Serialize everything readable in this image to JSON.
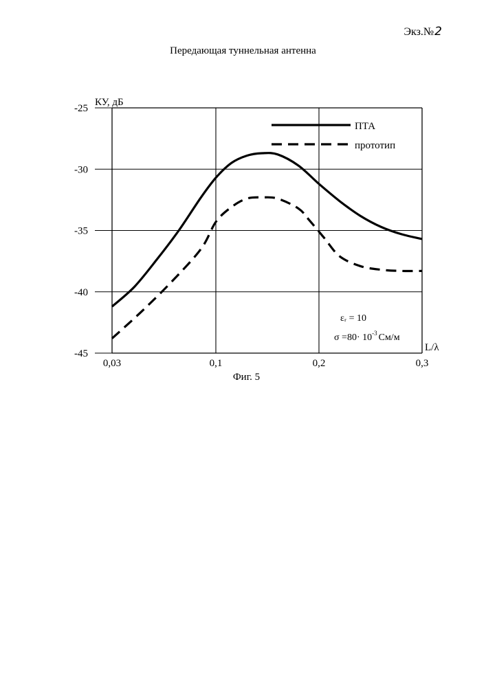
{
  "header": {
    "copy_label": "Экз.№",
    "copy_number": "2",
    "title": "Передающая туннельная антенна"
  },
  "chart_data": {
    "type": "line",
    "ylabel": "КУ, дБ",
    "xlabel": "L/λ",
    "x_ticks": [
      "0,03",
      "0,1",
      "0,2",
      "0,3"
    ],
    "y_ticks": [
      "-25",
      "-30",
      "-35",
      "-40",
      "-45"
    ],
    "ylim": [
      -45,
      -25
    ],
    "grid": true,
    "legend_position": "top-right",
    "series": [
      {
        "name": "ПТА",
        "style": "solid",
        "color": "#000000",
        "x": [
          0.03,
          0.045,
          0.06,
          0.075,
          0.09,
          0.1,
          0.115,
          0.13,
          0.145,
          0.16,
          0.18,
          0.2,
          0.22,
          0.24,
          0.26,
          0.28,
          0.3
        ],
        "y": [
          -41.2,
          -39.6,
          -37.4,
          -35.0,
          -32.3,
          -30.7,
          -29.5,
          -28.9,
          -28.7,
          -28.8,
          -29.7,
          -31.2,
          -32.6,
          -33.8,
          -34.7,
          -35.3,
          -35.7
        ]
      },
      {
        "name": "прототип",
        "style": "dashed",
        "color": "#000000",
        "x": [
          0.03,
          0.05,
          0.07,
          0.09,
          0.1,
          0.115,
          0.13,
          0.145,
          0.16,
          0.18,
          0.19,
          0.205,
          0.22,
          0.24,
          0.26,
          0.28,
          0.3
        ],
        "y": [
          -43.8,
          -41.6,
          -39.2,
          -36.5,
          -34.3,
          -33.1,
          -32.4,
          -32.3,
          -32.4,
          -33.2,
          -34.1,
          -35.6,
          -37.1,
          -37.9,
          -38.2,
          -38.3,
          -38.3
        ]
      }
    ],
    "annotations": [
      {
        "text": "εᵣ  = 10"
      },
      {
        "text": "σ =80· 10",
        "superscript": "-3",
        "suffix": "См/м"
      }
    ]
  },
  "caption": "Фиг. 5"
}
